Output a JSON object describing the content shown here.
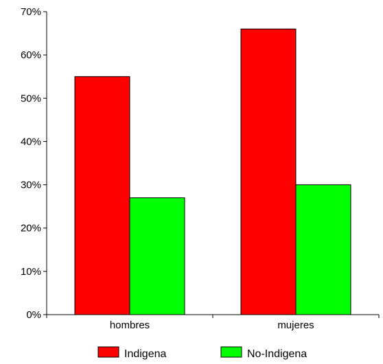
{
  "chart_data": {
    "type": "bar",
    "categories": [
      "hombres",
      "mujeres"
    ],
    "series": [
      {
        "name": "Indigena",
        "values": [
          55,
          66
        ],
        "color": "#ff0000"
      },
      {
        "name": "No-Indigena",
        "values": [
          27,
          30
        ],
        "color": "#00ff00"
      }
    ],
    "ylim": [
      0,
      70
    ],
    "yticks": [
      0,
      10,
      20,
      30,
      40,
      50,
      60,
      70
    ],
    "ytick_suffix": "%",
    "grid": false,
    "legend": "bottom"
  }
}
